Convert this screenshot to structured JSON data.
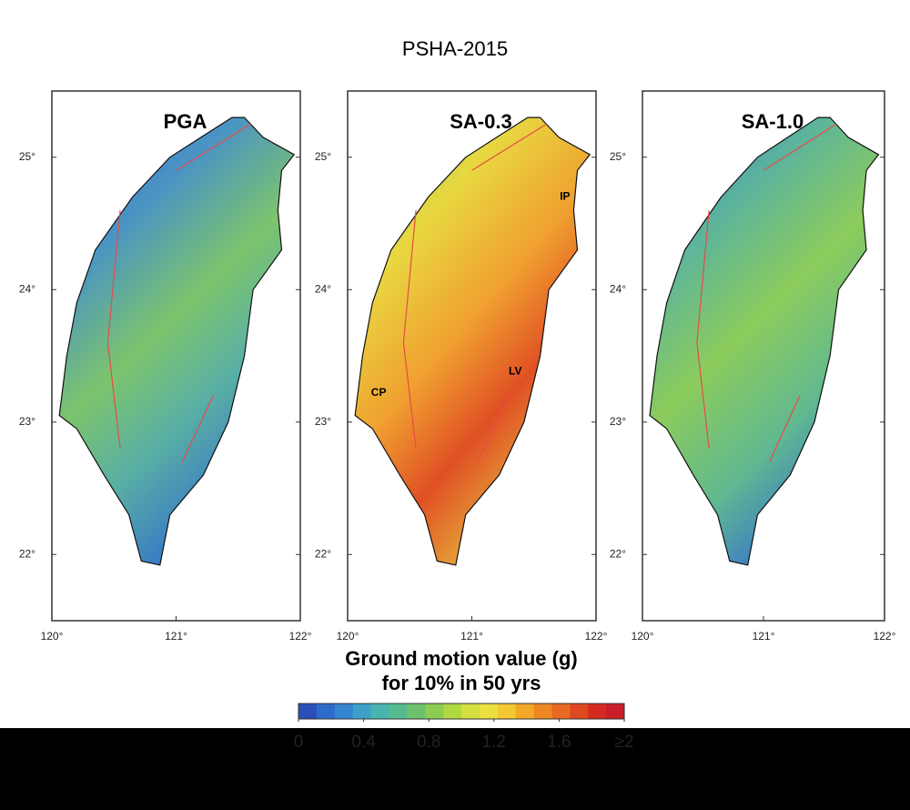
{
  "header": {
    "title": "PSHA-2015"
  },
  "map_axes": {
    "xlim": [
      120,
      122
    ],
    "ylim": [
      21.5,
      25.5
    ],
    "xticks": [
      {
        "value": 120,
        "label": "120°"
      },
      {
        "value": 121,
        "label": "121°"
      },
      {
        "value": 122,
        "label": "122°"
      }
    ],
    "yticks": [
      {
        "value": 22,
        "label": "22°"
      },
      {
        "value": 23,
        "label": "23°"
      },
      {
        "value": 24,
        "label": "24°"
      },
      {
        "value": 25,
        "label": "25°"
      }
    ]
  },
  "panels": [
    {
      "title": "PGA",
      "annotations": []
    },
    {
      "title": "SA-0.3",
      "annotations": [
        "IP",
        "CP",
        "LV"
      ]
    },
    {
      "title": "SA-1.0",
      "annotations": []
    }
  ],
  "colorbar": {
    "title": [
      "Ground motion value (g)",
      "for 10% in 50 yrs"
    ],
    "lim": [
      0,
      2
    ],
    "ticks": [
      0,
      0.4,
      0.8,
      1.2,
      {
        "value": 1.6,
        "label": "1.6"
      },
      {
        "value": 2,
        "label": "≥2"
      }
    ],
    "colors": [
      "#2a4fb8",
      "#2e6ac8",
      "#3484d0",
      "#3ea0c8",
      "#48b4b0",
      "#56bc90",
      "#6cc26c",
      "#8ccc50",
      "#b0d840",
      "#d4e040",
      "#ece040",
      "#f4c830",
      "#f4a828",
      "#ee8824",
      "#e86a22",
      "#e04820",
      "#d62a20",
      "#c81e28"
    ]
  }
}
